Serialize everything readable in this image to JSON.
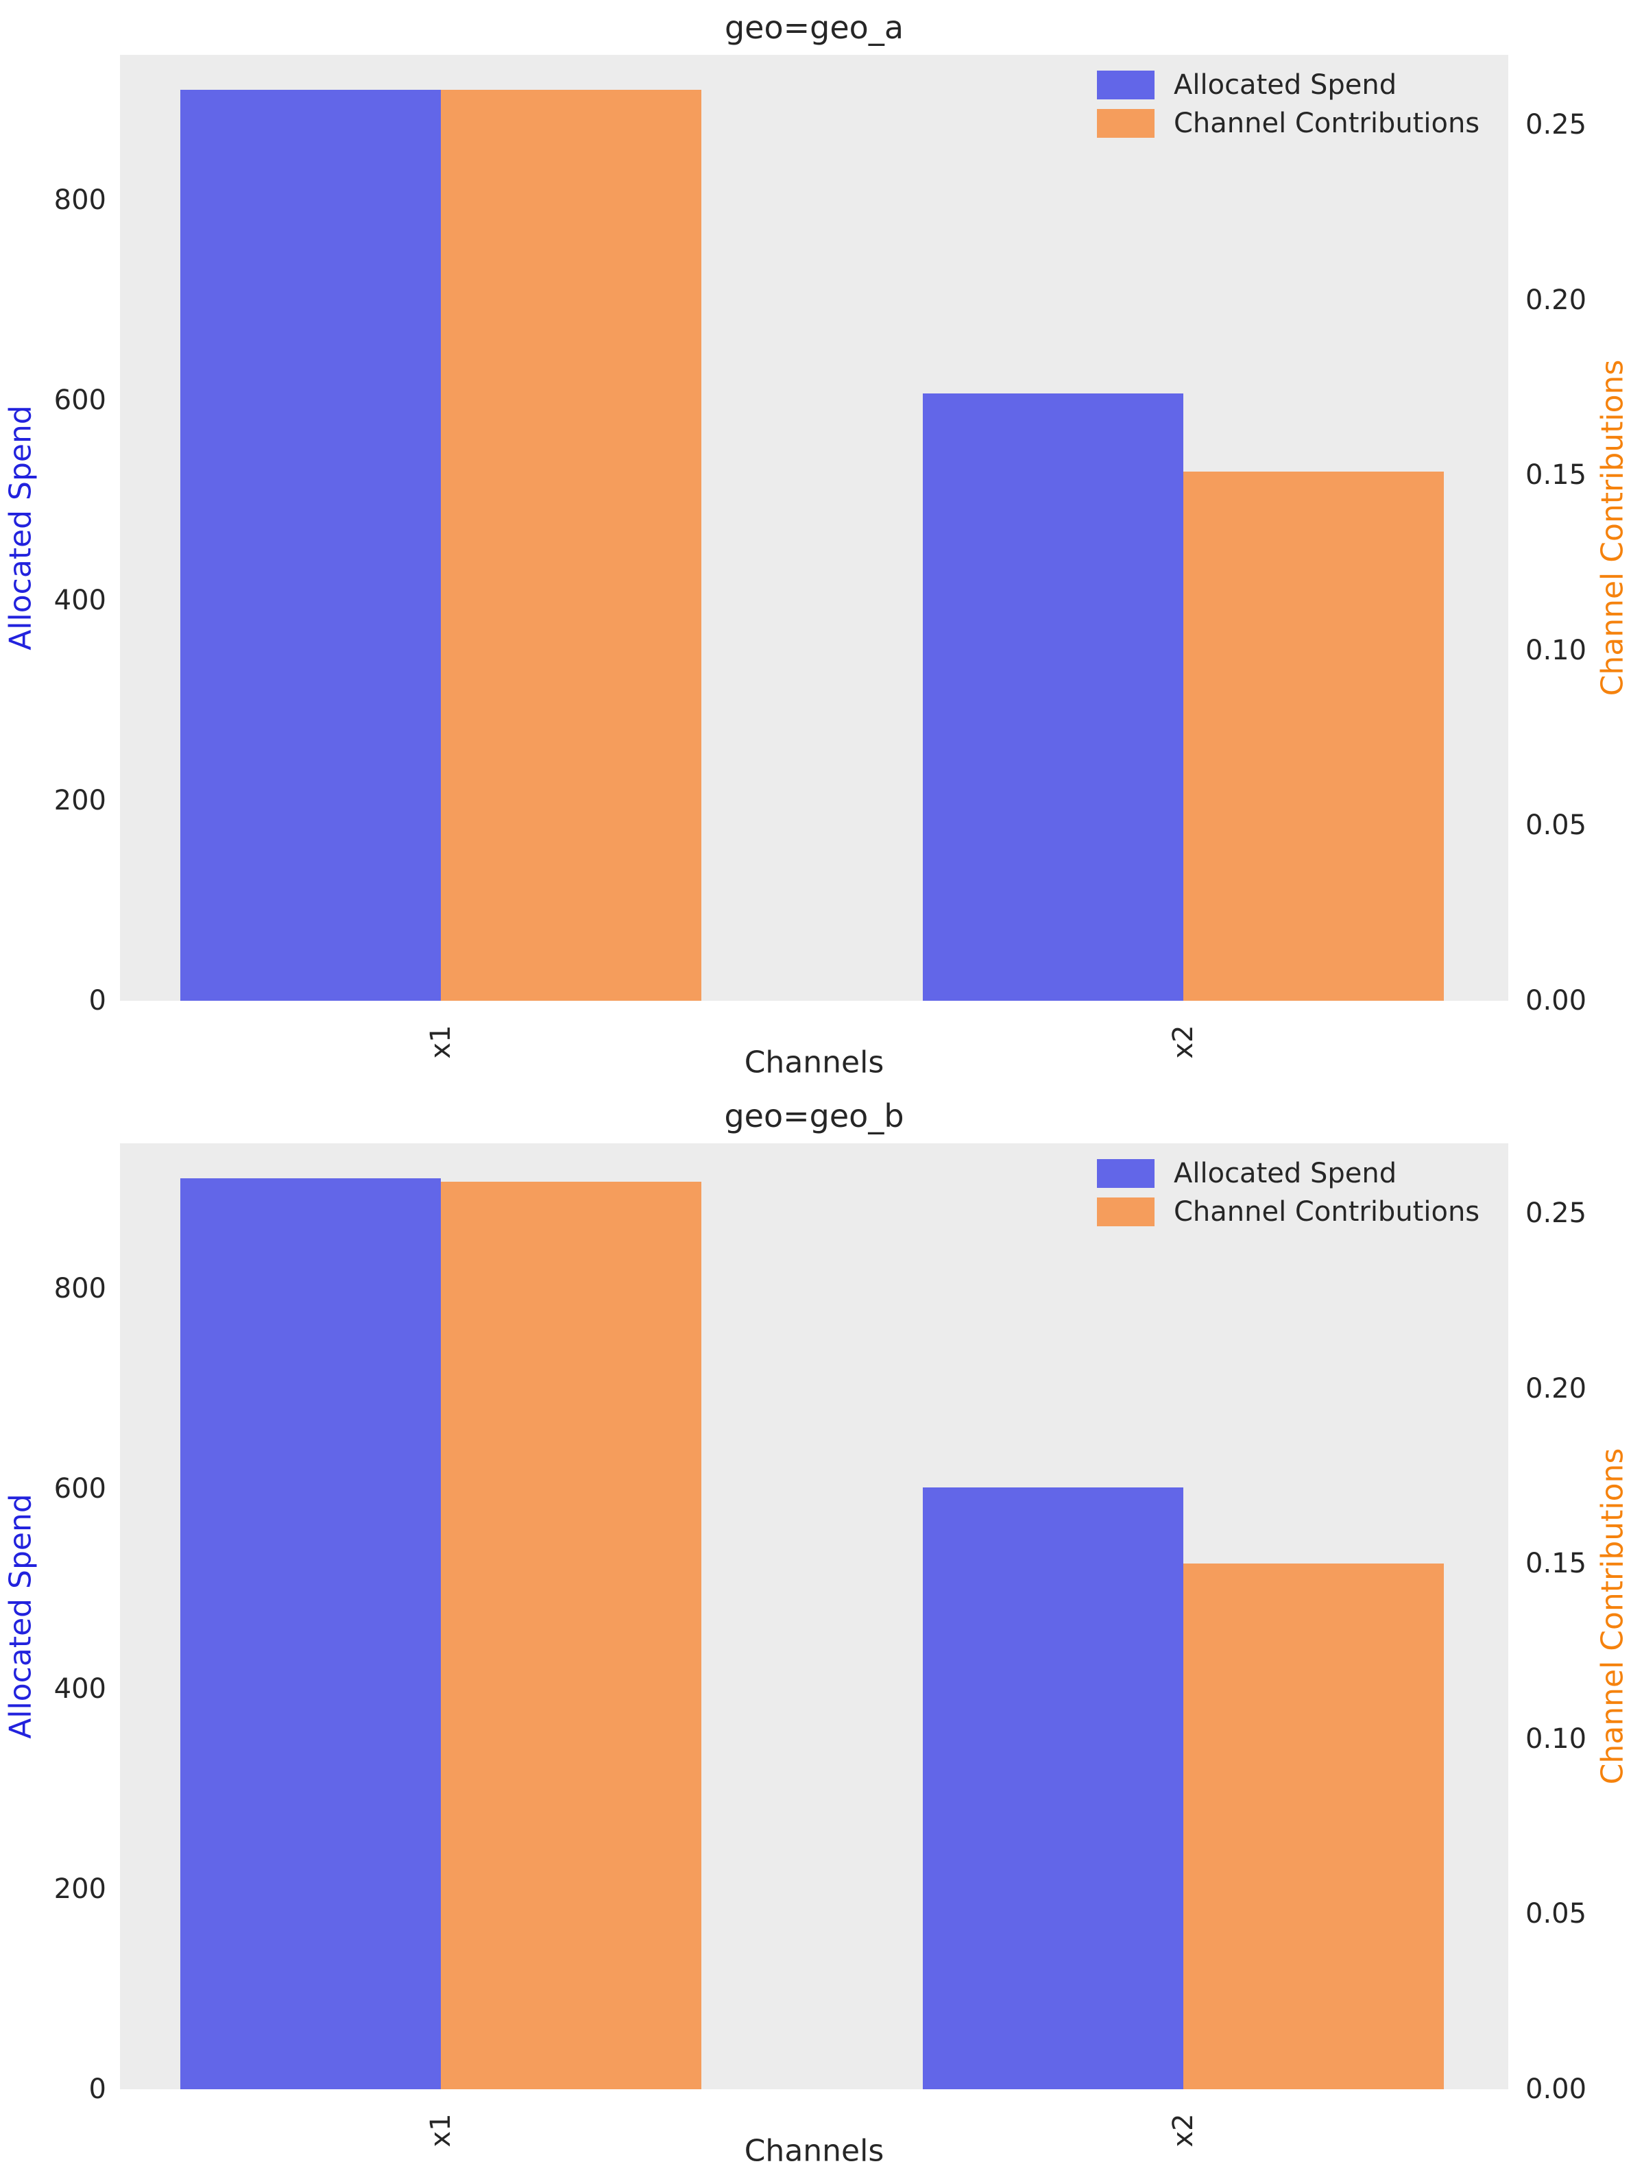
{
  "figure": {
    "background": "#ffffff",
    "plot_background": "#ececec"
  },
  "chart_data": [
    {
      "type": "bar",
      "title": "geo=geo_a",
      "xlabel": "Channels",
      "categories": [
        "x1",
        "x2"
      ],
      "series": [
        {
          "name": "Allocated Spend",
          "axis": "left",
          "color": "#6266e8",
          "values": [
            910,
            607
          ]
        },
        {
          "name": "Channel Contributions",
          "axis": "right",
          "color": "#f59d5c",
          "values": [
            0.26,
            0.151
          ]
        }
      ],
      "left_axis": {
        "label": "Allocated Spend",
        "label_color": "#2222dd",
        "ticks": [
          "0",
          "200",
          "400",
          "600",
          "800"
        ],
        "tick_values": [
          0,
          200,
          400,
          600,
          800
        ],
        "range": [
          0,
          945
        ]
      },
      "right_axis": {
        "label": "Channel Contributions",
        "label_color": "#f5820d",
        "ticks": [
          "0.00",
          "0.05",
          "0.10",
          "0.15",
          "0.20",
          "0.25"
        ],
        "tick_values": [
          0,
          0.05,
          0.1,
          0.15,
          0.2,
          0.25
        ],
        "range": [
          0,
          0.27
        ]
      },
      "legend": [
        {
          "label": "Allocated Spend",
          "color": "#6266e8"
        },
        {
          "label": "Channel Contributions",
          "color": "#f59d5c"
        }
      ],
      "grid": false,
      "legend_position": "top-right"
    },
    {
      "type": "bar",
      "title": "geo=geo_b",
      "xlabel": "Channels",
      "categories": [
        "x1",
        "x2"
      ],
      "series": [
        {
          "name": "Allocated Spend",
          "axis": "left",
          "color": "#6266e8",
          "values": [
            910,
            601
          ]
        },
        {
          "name": "Channel Contributions",
          "axis": "right",
          "color": "#f59d5c",
          "values": [
            0.259,
            0.15
          ]
        }
      ],
      "left_axis": {
        "label": "Allocated Spend",
        "label_color": "#2222dd",
        "ticks": [
          "0",
          "200",
          "400",
          "600",
          "800"
        ],
        "tick_values": [
          0,
          200,
          400,
          600,
          800
        ],
        "range": [
          0,
          945
        ]
      },
      "right_axis": {
        "label": "Channel Contributions",
        "label_color": "#f5820d",
        "ticks": [
          "0.00",
          "0.05",
          "0.10",
          "0.15",
          "0.20",
          "0.25"
        ],
        "tick_values": [
          0,
          0.05,
          0.1,
          0.15,
          0.2,
          0.25
        ],
        "range": [
          0,
          0.27
        ]
      },
      "legend": [
        {
          "label": "Allocated Spend",
          "color": "#6266e8"
        },
        {
          "label": "Channel Contributions",
          "color": "#f59d5c"
        }
      ],
      "grid": false,
      "legend_position": "top-right"
    }
  ]
}
